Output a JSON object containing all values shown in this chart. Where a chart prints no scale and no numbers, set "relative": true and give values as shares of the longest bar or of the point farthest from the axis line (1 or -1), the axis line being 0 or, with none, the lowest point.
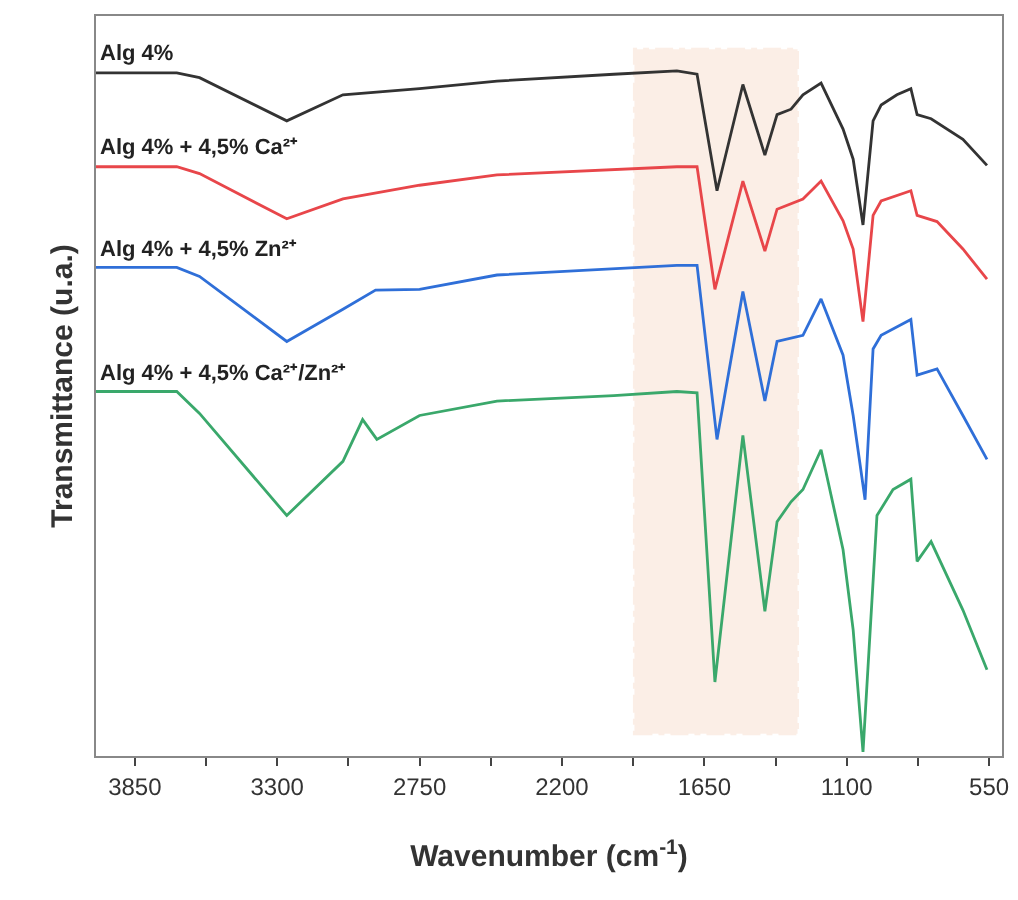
{
  "chart_data": {
    "type": "line",
    "relative": true,
    "xlabel": "Wavenumber (cm$^{-1}$)",
    "ylabel": "Transmittance (u.a.)",
    "xlim": [
      4000,
      500
    ],
    "xticks": [
      3850,
      {
        "value": 3575,
        "label": null
      },
      3300,
      {
        "value": 3025,
        "label": null
      },
      2750,
      {
        "value": 2475,
        "label": null
      },
      2200,
      {
        "value": 1925,
        "label": null
      },
      1650,
      {
        "value": 1375,
        "label": null
      },
      1100,
      {
        "value": 825,
        "label": null
      },
      550
    ],
    "grid": false,
    "legend": false,
    "line_style": "solid",
    "marker": "none",
    "bands": [
      {
        "axis": "x",
        "from": 1920,
        "to": 1290,
        "color": "#e07b39"
      }
    ],
    "series": [
      {
        "name": "Alg 4%",
        "color": "#333333",
        "x": [
          4000,
          3688,
          3600,
          3263,
          3046,
          2750,
          2451,
          2000,
          1756,
          1678,
          1601,
          1501,
          1416,
          1369,
          1315,
          1269,
          1199,
          1114,
          1075,
          1037,
          998,
          967,
          906,
          852,
          828,
          774,
          651,
          558
        ],
        "values": [
          0.997,
          0.997,
          0.99,
          0.927,
          0.965,
          0.974,
          0.985,
          0.995,
          1,
          0.995,
          0.825,
          0.98,
          0.877,
          0.936,
          0.944,
          0.965,
          0.982,
          0.915,
          0.871,
          0.775,
          0.927,
          0.95,
          0.965,
          0.974,
          0.936,
          0.93,
          0.9,
          0.862
        ]
      },
      {
        "name": "Alg 4% + 4,5% Ca²⁺",
        "color": "#e8464a",
        "x": [
          4000,
          3688,
          3600,
          3263,
          3046,
          2750,
          2451,
          1756,
          1678,
          1609,
          1501,
          1416,
          1369,
          1269,
          1199,
          1114,
          1075,
          1037,
          998,
          967,
          852,
          828,
          751,
          651,
          558
        ],
        "values": [
          0.86,
          0.86,
          0.85,
          0.784,
          0.813,
          0.833,
          0.848,
          0.86,
          0.86,
          0.681,
          0.839,
          0.737,
          0.798,
          0.813,
          0.839,
          0.781,
          0.74,
          0.634,
          0.789,
          0.81,
          0.825,
          0.789,
          0.78,
          0.74,
          0.696
        ]
      },
      {
        "name": "Alg 4% + 4,5% Zn²⁺",
        "color": "#2f6fd8",
        "x": [
          4000,
          3688,
          3600,
          3263,
          3046,
          2920,
          2750,
          2451,
          1756,
          1678,
          1601,
          1501,
          1416,
          1369,
          1269,
          1199,
          1114,
          1075,
          1029,
          998,
          967,
          852,
          828,
          751,
          651,
          558
        ],
        "values": [
          0.713,
          0.713,
          0.7,
          0.605,
          0.652,
          0.68,
          0.681,
          0.702,
          0.716,
          0.716,
          0.462,
          0.678,
          0.518,
          0.605,
          0.614,
          0.667,
          0.585,
          0.497,
          0.374,
          0.594,
          0.614,
          0.637,
          0.556,
          0.565,
          0.497,
          0.433
        ]
      },
      {
        "name": "Alg 4% + 4,5% Ca²⁺/Zn²⁺",
        "color": "#3aa86b",
        "x": [
          4000,
          3688,
          3600,
          3263,
          3046,
          2970,
          2915,
          2750,
          2451,
          2000,
          1756,
          1678,
          1609,
          1501,
          1416,
          1369,
          1315,
          1269,
          1199,
          1114,
          1075,
          1037,
          983,
          921,
          852,
          828,
          774,
          651,
          558
        ],
        "values": [
          0.532,
          0.532,
          0.5,
          0.351,
          0.43,
          0.491,
          0.462,
          0.497,
          0.518,
          0.526,
          0.532,
          0.53,
          0.108,
          0.468,
          0.211,
          0.342,
          0.371,
          0.389,
          0.447,
          0.301,
          0.184,
          0.006,
          0.351,
          0.389,
          0.404,
          0.284,
          0.313,
          0.213,
          0.126
        ]
      }
    ]
  }
}
